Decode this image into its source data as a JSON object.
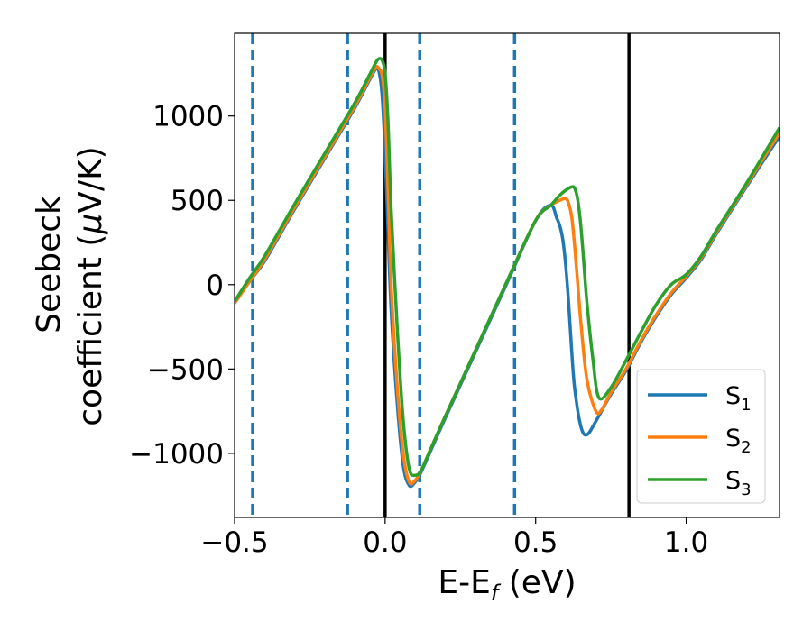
{
  "chart_data": {
    "type": "line",
    "xlabel_base": "E-E",
    "xlabel_sub": "f",
    "xlabel_unit": " (eV)",
    "ylabel_line1": "Seebeck",
    "ylabel_line2_prefix": "coefficient  (",
    "ylabel_mu": "μ",
    "ylabel_line2_suffix": "V/K)",
    "xlim": [
      -0.5,
      1.31
    ],
    "ylim": [
      -1380,
      1490
    ],
    "x_ticks": [
      {
        "value": -0.5,
        "label": "−0.5"
      },
      {
        "value": 0.0,
        "label": "0.0"
      },
      {
        "value": 0.5,
        "label": "0.5"
      },
      {
        "value": 1.0,
        "label": "1.0"
      }
    ],
    "y_ticks": [
      {
        "value": 1000,
        "label": "1000"
      },
      {
        "value": 500,
        "label": "500"
      },
      {
        "value": 0,
        "label": "0"
      },
      {
        "value": -500,
        "label": "−500"
      },
      {
        "value": -1000,
        "label": "−1000"
      }
    ],
    "vlines_dashed": [
      -0.44,
      -0.125,
      0.115,
      0.43
    ],
    "vlines_solid": [
      0.0,
      0.81
    ],
    "legend_position": "lower-right",
    "series": [
      {
        "name_base": "S",
        "name_sub": "1",
        "color": "#1f77b4",
        "x": [
          -0.5,
          -0.45,
          -0.4,
          -0.3,
          -0.2,
          -0.1,
          -0.05,
          -0.03,
          -0.02,
          -0.01,
          0.0,
          0.01,
          0.02,
          0.04,
          0.06,
          0.08,
          0.1,
          0.12,
          0.15,
          0.2,
          0.3,
          0.4,
          0.5,
          0.55,
          0.57,
          0.58,
          0.59,
          0.6,
          0.61,
          0.62,
          0.63,
          0.65,
          0.67,
          0.7,
          0.75,
          0.8,
          0.85,
          0.9,
          0.95,
          1.0,
          1.05,
          1.1,
          1.2,
          1.31
        ],
        "y": [
          -110,
          20,
          140,
          450,
          750,
          1050,
          1220,
          1280,
          1260,
          1120,
          780,
          300,
          -150,
          -700,
          -1070,
          -1190,
          -1170,
          -1110,
          -990,
          -790,
          -400,
          -10,
          380,
          470,
          395,
          350,
          270,
          110,
          -120,
          -400,
          -620,
          -840,
          -890,
          -810,
          -650,
          -510,
          -340,
          -190,
          -60,
          40,
          150,
          300,
          580,
          880
        ]
      },
      {
        "name_base": "S",
        "name_sub": "2",
        "color": "#ff7f0e",
        "x": [
          -0.5,
          -0.45,
          -0.4,
          -0.3,
          -0.2,
          -0.1,
          -0.05,
          -0.03,
          -0.02,
          -0.01,
          0.0,
          0.01,
          0.02,
          0.04,
          0.06,
          0.08,
          0.1,
          0.12,
          0.15,
          0.2,
          0.3,
          0.4,
          0.5,
          0.55,
          0.58,
          0.6,
          0.61,
          0.62,
          0.63,
          0.64,
          0.65,
          0.67,
          0.7,
          0.72,
          0.75,
          0.8,
          0.85,
          0.9,
          0.95,
          1.0,
          1.05,
          1.1,
          1.2,
          1.31
        ],
        "y": [
          -110,
          20,
          150,
          460,
          760,
          1060,
          1230,
          1290,
          1280,
          1240,
          1050,
          550,
          0,
          -600,
          -1000,
          -1170,
          -1160,
          -1100,
          -980,
          -780,
          -390,
          0,
          380,
          470,
          500,
          510,
          480,
          400,
          220,
          0,
          -220,
          -560,
          -750,
          -740,
          -640,
          -500,
          -330,
          -180,
          -50,
          50,
          160,
          310,
          590,
          900
        ]
      },
      {
        "name_base": "S",
        "name_sub": "3",
        "color": "#2ca02c",
        "x": [
          -0.5,
          -0.45,
          -0.4,
          -0.3,
          -0.2,
          -0.1,
          -0.05,
          -0.03,
          -0.02,
          -0.01,
          0.0,
          0.01,
          0.02,
          0.04,
          0.06,
          0.08,
          0.1,
          0.12,
          0.15,
          0.2,
          0.3,
          0.4,
          0.5,
          0.55,
          0.58,
          0.6,
          0.62,
          0.63,
          0.64,
          0.65,
          0.66,
          0.67,
          0.69,
          0.71,
          0.75,
          0.8,
          0.85,
          0.9,
          0.95,
          1.0,
          1.05,
          1.1,
          1.2,
          1.31
        ],
        "y": [
          -100,
          40,
          170,
          480,
          780,
          1080,
          1250,
          1320,
          1340,
          1330,
          1250,
          950,
          450,
          -250,
          -800,
          -1090,
          -1130,
          -1100,
          -980,
          -780,
          -390,
          0,
          380,
          470,
          530,
          560,
          580,
          570,
          500,
          350,
          130,
          -100,
          -440,
          -670,
          -610,
          -450,
          -280,
          -120,
          0,
          60,
          170,
          320,
          600,
          930
        ]
      }
    ]
  }
}
